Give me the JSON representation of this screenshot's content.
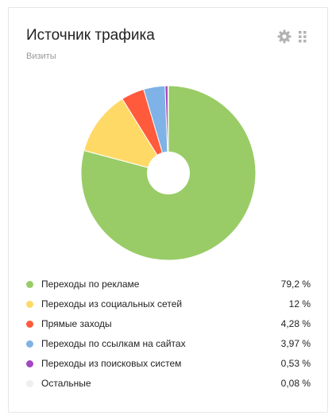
{
  "widget": {
    "title": "Источник трафика",
    "subtitle": "Визиты",
    "settings_icon": "gear-icon",
    "drag_icon": "drag-handle-icon"
  },
  "chart_data": {
    "type": "pie",
    "donut": true,
    "legend_position": "bottom",
    "categories": [
      "Переходы по рекламе",
      "Переходы из социальных сетей",
      "Прямые заходы",
      "Переходы по ссылкам на сайтах",
      "Переходы из поисковых систем",
      "Остальные"
    ],
    "values": [
      79.2,
      12,
      4.28,
      3.97,
      0.53,
      0.08
    ],
    "value_labels": [
      "79,2 %",
      "12 %",
      "4,28 %",
      "3,97 %",
      "0,53 %",
      "0,08 %"
    ],
    "colors": [
      "#99cc66",
      "#ffd966",
      "#ff5a3c",
      "#7fb2e6",
      "#a347c2",
      "#eeeeee"
    ]
  }
}
